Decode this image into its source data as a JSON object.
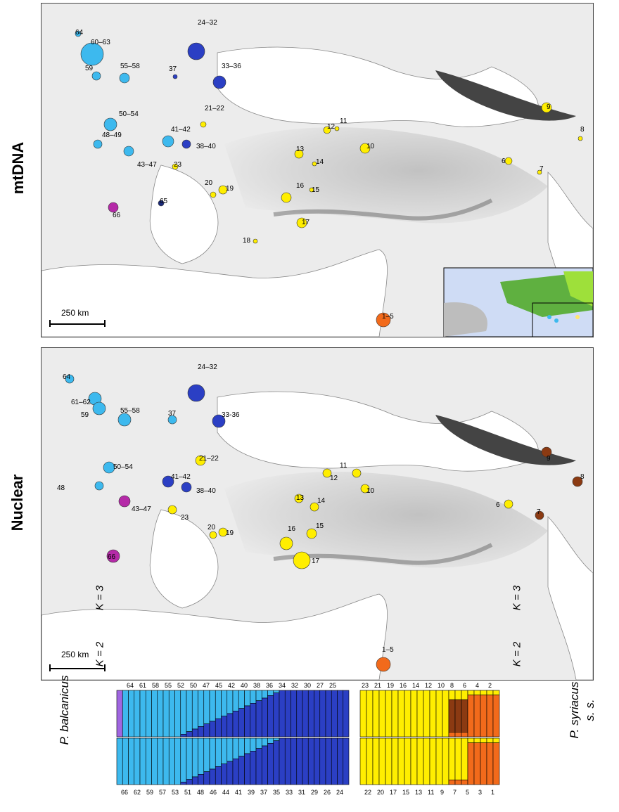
{
  "panels": {
    "mtdna_label": "mtDNA",
    "nuclear_label": "Nuclear",
    "scale_label": "250 km"
  },
  "colors": {
    "balcanicus_light": "#3db9ee",
    "balcanicus_dark": "#2b3fc4",
    "magenta": "#b52aa8",
    "navy": "#1a2a7a",
    "yellow": "#ffee00",
    "orange": "#f26a1b",
    "brown": "#8b3a12",
    "purple": "#a066e0"
  },
  "strip": {
    "left_species": "P. balcanicus",
    "right_species_line1": "P. syriacus",
    "right_species_line2": "s. s.",
    "k3": "K = 3",
    "k2": "K = 2",
    "top_labels_left": [
      "64",
      "61",
      "58",
      "55",
      "52",
      "50",
      "47",
      "45",
      "42",
      "40",
      "38",
      "36",
      "34",
      "32",
      "30",
      "27",
      "25"
    ],
    "bottom_labels_left": [
      "66",
      "62",
      "59",
      "57",
      "53",
      "51",
      "48",
      "46",
      "44",
      "41",
      "39",
      "37",
      "35",
      "33",
      "31",
      "29",
      "26",
      "24"
    ],
    "top_labels_right": [
      "23",
      "21",
      "19",
      "16",
      "14",
      "12",
      "10",
      "8",
      "6",
      "4",
      "2"
    ],
    "bottom_labels_right": [
      "22",
      "20",
      "17",
      "15",
      "13",
      "11",
      "9",
      "7",
      "5",
      "3",
      "1"
    ]
  },
  "chart_data": [
    {
      "type": "map",
      "title": "mtDNA",
      "scale": "250 km",
      "labels": [
        "64",
        "60–63",
        "59",
        "55–58",
        "37",
        "24–32",
        "33–36",
        "21–22",
        "41–42",
        "38–40",
        "48–49",
        "50–54",
        "43–47",
        "23",
        "20",
        "19",
        "65",
        "66",
        "9",
        "8",
        "11",
        "12",
        "10",
        "13",
        "14",
        "16",
        "15",
        "17",
        "18",
        "6",
        "7",
        "1–5"
      ]
    },
    {
      "type": "map",
      "title": "Nuclear",
      "scale": "250 km",
      "labels": [
        "64",
        "61–62",
        "59",
        "55–58",
        "37",
        "24–32",
        "33-36",
        "21–22",
        "41–42",
        "38–40",
        "48",
        "50–54",
        "43–47",
        "23",
        "20",
        "19",
        "66",
        "9",
        "8",
        "11",
        "12",
        "10",
        "13",
        "14",
        "16",
        "15",
        "17",
        "6",
        "7",
        "1–5"
      ]
    }
  ]
}
